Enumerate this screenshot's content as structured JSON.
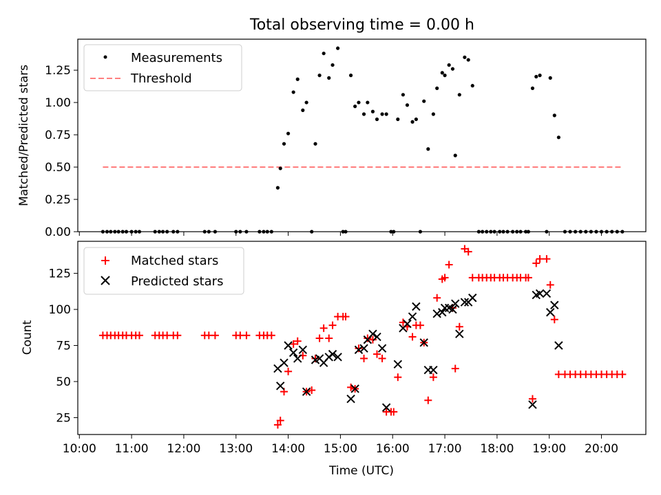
{
  "chart_data": [
    {
      "type": "scatter",
      "title": "Total observing time = 0.00 h",
      "xlabel": "",
      "ylabel": "Matched/Predicted stars",
      "xlim": [
        9.97,
        20.85
      ],
      "ylim": [
        0.0,
        1.49
      ],
      "yticks": [
        0.0,
        0.25,
        0.5,
        0.75,
        1.0,
        1.25
      ],
      "ytick_labels": [
        "0.00",
        "0.25",
        "0.50",
        "0.75",
        "1.00",
        "1.25"
      ],
      "legend_position": "top-left",
      "series": [
        {
          "name": "Measurements",
          "marker": "dot",
          "color": "#000000",
          "x": [
            10.45,
            10.53,
            10.6,
            10.68,
            10.75,
            10.83,
            10.9,
            11.0,
            11.08,
            11.15,
            11.45,
            11.53,
            11.6,
            11.68,
            11.8,
            11.88,
            12.4,
            12.48,
            12.6,
            13.0,
            13.08,
            13.2,
            13.45,
            13.53,
            13.6,
            13.68,
            13.8,
            13.85,
            13.92,
            14.0,
            14.1,
            14.18,
            14.28,
            14.35,
            14.45,
            14.52,
            14.6,
            14.68,
            14.78,
            14.85,
            14.95,
            15.05,
            15.1,
            15.2,
            15.28,
            15.35,
            15.45,
            15.52,
            15.62,
            15.7,
            15.8,
            15.88,
            15.97,
            16.02,
            16.1,
            16.2,
            16.28,
            16.38,
            16.45,
            16.53,
            16.6,
            16.68,
            16.78,
            16.85,
            16.95,
            17.0,
            17.08,
            17.15,
            17.2,
            17.28,
            17.38,
            17.45,
            17.53,
            17.65,
            17.72,
            17.8,
            17.88,
            17.95,
            18.05,
            18.12,
            18.2,
            18.3,
            18.38,
            18.45,
            18.55,
            18.6,
            18.68,
            18.75,
            18.82,
            18.95,
            19.02,
            19.1,
            19.18,
            19.3,
            19.4,
            19.5,
            19.6,
            19.7,
            19.8,
            19.9,
            20.0,
            20.1,
            20.2,
            20.3,
            20.4
          ],
          "y": [
            0,
            0,
            0,
            0,
            0,
            0,
            0,
            0,
            0,
            0,
            0,
            0,
            0,
            0,
            0,
            0,
            0,
            0,
            0,
            0,
            0,
            0,
            0,
            0,
            0,
            0,
            0.34,
            0.49,
            0.68,
            0.76,
            1.08,
            1.18,
            0.94,
            1.0,
            0,
            0.68,
            1.21,
            1.38,
            1.19,
            1.29,
            1.42,
            0,
            0,
            1.21,
            0.97,
            1.0,
            0.91,
            1.0,
            0.93,
            0.87,
            0.91,
            0.91,
            0,
            0,
            0.87,
            1.06,
            0.98,
            0.85,
            0.87,
            0,
            1.01,
            0.64,
            0.91,
            1.11,
            1.23,
            1.21,
            1.29,
            1.26,
            0.59,
            1.06,
            1.35,
            1.33,
            1.13,
            0,
            0,
            0,
            0,
            0,
            0,
            0,
            0,
            0,
            0,
            0,
            0,
            0,
            1.11,
            1.2,
            1.21,
            0,
            1.19,
            0.9,
            0.73,
            0,
            0,
            0,
            0,
            0,
            0,
            0,
            0,
            0,
            0,
            0,
            0
          ]
        },
        {
          "name": "Threshold",
          "marker": "dashed-line",
          "color": "#ff7f7f",
          "x": [
            10.45,
            20.4
          ],
          "y": [
            0.5,
            0.5
          ]
        }
      ]
    },
    {
      "type": "scatter",
      "title": "",
      "xlabel": "Time (UTC)",
      "ylabel": "Count",
      "xlim": [
        9.97,
        20.85
      ],
      "ylim": [
        13.3,
        147.2
      ],
      "xticks": [
        10,
        11,
        12,
        13,
        14,
        15,
        16,
        17,
        18,
        19,
        20
      ],
      "xtick_labels": [
        "10:00",
        "11:00",
        "12:00",
        "13:00",
        "14:00",
        "15:00",
        "16:00",
        "17:00",
        "18:00",
        "19:00",
        "20:00"
      ],
      "yticks": [
        25,
        50,
        75,
        100,
        125
      ],
      "ytick_labels": [
        "25",
        "50",
        "75",
        "100",
        "125"
      ],
      "legend_position": "top-left",
      "series": [
        {
          "name": "Matched stars",
          "marker": "plus",
          "color": "#ff0000",
          "x": [
            10.45,
            10.53,
            10.6,
            10.68,
            10.75,
            10.83,
            10.9,
            11.0,
            11.08,
            11.15,
            11.45,
            11.53,
            11.6,
            11.68,
            11.8,
            11.88,
            12.4,
            12.48,
            12.6,
            13.0,
            13.08,
            13.2,
            13.45,
            13.53,
            13.6,
            13.68,
            13.8,
            13.85,
            13.92,
            14.0,
            14.1,
            14.18,
            14.28,
            14.35,
            14.45,
            14.52,
            14.6,
            14.68,
            14.78,
            14.85,
            14.95,
            15.05,
            15.1,
            15.2,
            15.28,
            15.35,
            15.45,
            15.52,
            15.62,
            15.7,
            15.8,
            15.88,
            15.97,
            16.02,
            16.1,
            16.2,
            16.28,
            16.38,
            16.45,
            16.53,
            16.6,
            16.68,
            16.78,
            16.85,
            16.95,
            17.0,
            17.08,
            17.15,
            17.2,
            17.28,
            17.38,
            17.45,
            17.53,
            17.65,
            17.72,
            17.8,
            17.88,
            17.95,
            18.05,
            18.12,
            18.2,
            18.3,
            18.38,
            18.45,
            18.55,
            18.6,
            18.68,
            18.75,
            18.82,
            18.95,
            19.02,
            19.1,
            19.18,
            19.3,
            19.4,
            19.5,
            19.6,
            19.7,
            19.8,
            19.9,
            20.0,
            20.1,
            20.2,
            20.3,
            20.4
          ],
          "y": [
            82,
            82,
            82,
            82,
            82,
            82,
            82,
            82,
            82,
            82,
            82,
            82,
            82,
            82,
            82,
            82,
            82,
            82,
            82,
            82,
            82,
            82,
            82,
            82,
            82,
            82,
            20,
            23,
            43,
            57,
            76,
            78,
            68,
            43,
            44,
            66,
            80,
            87,
            80,
            89,
            95,
            95,
            95,
            46,
            45,
            73,
            66,
            80,
            79,
            69,
            66,
            29,
            29,
            29,
            53,
            91,
            88,
            81,
            89,
            89,
            77,
            37,
            53,
            108,
            121,
            122,
            131,
            101,
            59,
            88,
            142,
            140,
            122,
            122,
            122,
            122,
            122,
            122,
            122,
            122,
            122,
            122,
            122,
            122,
            122,
            122,
            38,
            132,
            135,
            135,
            117,
            93,
            55,
            55,
            55,
            55,
            55,
            55,
            55,
            55,
            55,
            55,
            55,
            55,
            55
          ]
        },
        {
          "name": "Predicted stars",
          "marker": "cross",
          "color": "#000000",
          "x": [
            13.8,
            13.85,
            13.92,
            14.0,
            14.1,
            14.18,
            14.28,
            14.35,
            14.52,
            14.6,
            14.68,
            14.78,
            14.85,
            14.95,
            15.2,
            15.28,
            15.35,
            15.45,
            15.52,
            15.62,
            15.7,
            15.8,
            15.88,
            16.1,
            16.2,
            16.28,
            16.38,
            16.45,
            16.6,
            16.68,
            16.78,
            16.85,
            16.95,
            17.0,
            17.08,
            17.15,
            17.2,
            17.28,
            17.38,
            17.45,
            17.53,
            18.68,
            18.75,
            18.82,
            18.95,
            19.02,
            19.1,
            19.18
          ],
          "y": [
            59,
            47,
            63,
            75,
            70,
            66,
            72,
            43,
            65,
            66,
            63,
            67,
            69,
            67,
            38,
            45,
            72,
            73,
            79,
            83,
            81,
            73,
            32,
            62,
            87,
            90,
            95,
            102,
            77,
            58,
            58,
            97,
            98,
            101,
            101,
            100,
            104,
            83,
            105,
            105,
            108,
            34,
            110,
            111,
            111,
            98,
            103,
            75
          ]
        }
      ]
    }
  ]
}
